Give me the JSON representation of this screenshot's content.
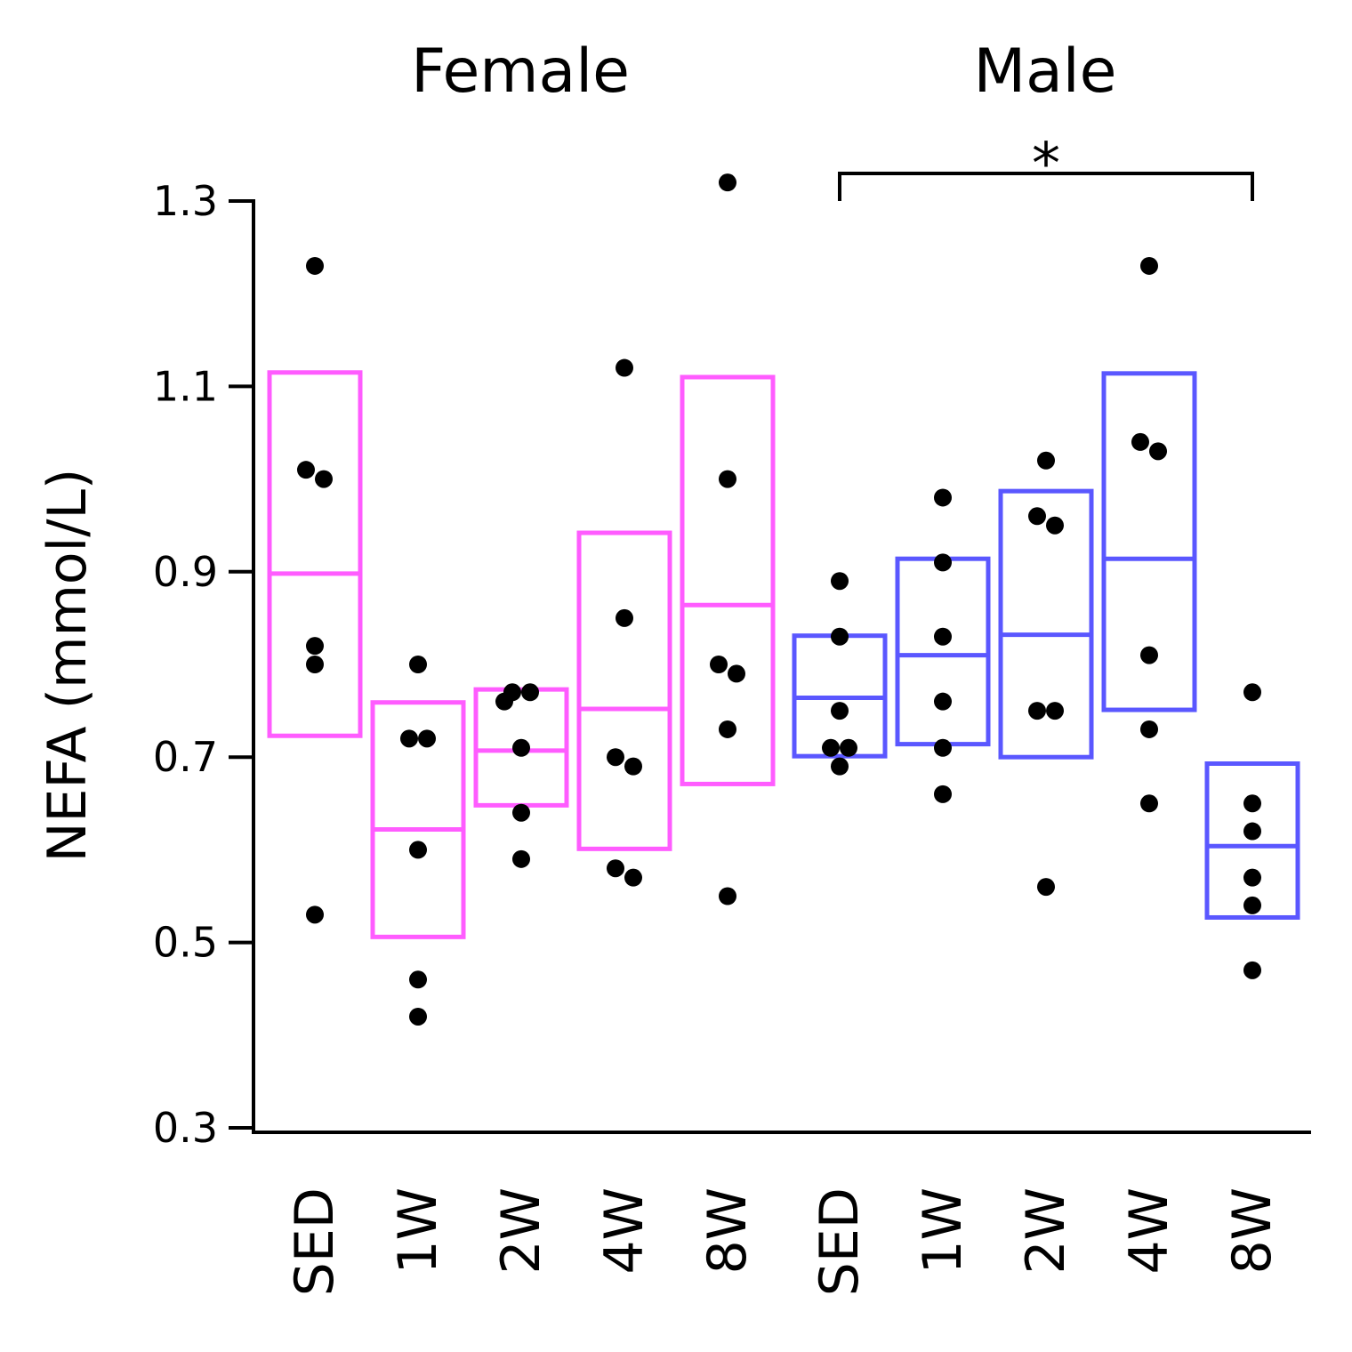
{
  "chart_data": {
    "type": "boxplot",
    "ylabel": "NEFA (mmol/L)",
    "ylim": [
      0.3,
      1.3
    ],
    "yticks": [
      "0.3",
      "0.5",
      "0.7",
      "0.9",
      "1.1",
      "1.3"
    ],
    "grid": false,
    "legend": "none",
    "colors": {
      "Female": "#ff5cff",
      "Male": "#5a57ff"
    },
    "panels": [
      {
        "title": "Female",
        "categories": [
          "SED",
          "1W",
          "2W",
          "4W",
          "8W"
        ],
        "boxes": [
          {
            "category": "SED",
            "lower": 0.723,
            "median": 0.898,
            "upper": 1.115,
            "points": [
              1.23,
              1.0,
              1.01,
              0.82,
              0.8,
              0.53
            ]
          },
          {
            "category": "1W",
            "lower": 0.506,
            "median": 0.622,
            "upper": 0.759,
            "points": [
              0.8,
              0.72,
              0.72,
              0.6,
              0.46,
              0.42
            ]
          },
          {
            "category": "2W",
            "lower": 0.648,
            "median": 0.707,
            "upper": 0.773,
            "points": [
              0.77,
              0.77,
              0.76,
              0.71,
              0.64,
              0.59
            ]
          },
          {
            "category": "4W",
            "lower": 0.601,
            "median": 0.752,
            "upper": 0.942,
            "points": [
              1.12,
              0.85,
              0.7,
              0.69,
              0.58,
              0.57
            ]
          },
          {
            "category": "8W",
            "lower": 0.671,
            "median": 0.864,
            "upper": 1.11,
            "points": [
              1.32,
              1.0,
              0.8,
              0.79,
              0.73,
              0.55
            ]
          }
        ]
      },
      {
        "title": "Male",
        "categories": [
          "SED",
          "1W",
          "2W",
          "4W",
          "8W"
        ],
        "boxes": [
          {
            "category": "SED",
            "lower": 0.701,
            "median": 0.764,
            "upper": 0.831,
            "points": [
              0.89,
              0.83,
              0.75,
              0.71,
              0.71,
              0.69
            ]
          },
          {
            "category": "1W",
            "lower": 0.714,
            "median": 0.81,
            "upper": 0.914,
            "points": [
              0.98,
              0.91,
              0.83,
              0.76,
              0.71,
              0.66
            ]
          },
          {
            "category": "2W",
            "lower": 0.7,
            "median": 0.832,
            "upper": 0.987,
            "points": [
              1.02,
              0.96,
              0.95,
              0.75,
              0.75,
              0.56
            ]
          },
          {
            "category": "4W",
            "lower": 0.751,
            "median": 0.914,
            "upper": 1.114,
            "points": [
              1.23,
              1.04,
              1.03,
              0.81,
              0.73,
              0.65
            ]
          },
          {
            "category": "8W",
            "lower": 0.527,
            "median": 0.604,
            "upper": 0.693,
            "points": [
              0.77,
              0.65,
              0.62,
              0.57,
              0.54,
              0.47
            ]
          }
        ]
      }
    ],
    "annotations": [
      {
        "text": "*",
        "panel": "Male",
        "from": "SED",
        "to": "8W"
      }
    ]
  }
}
